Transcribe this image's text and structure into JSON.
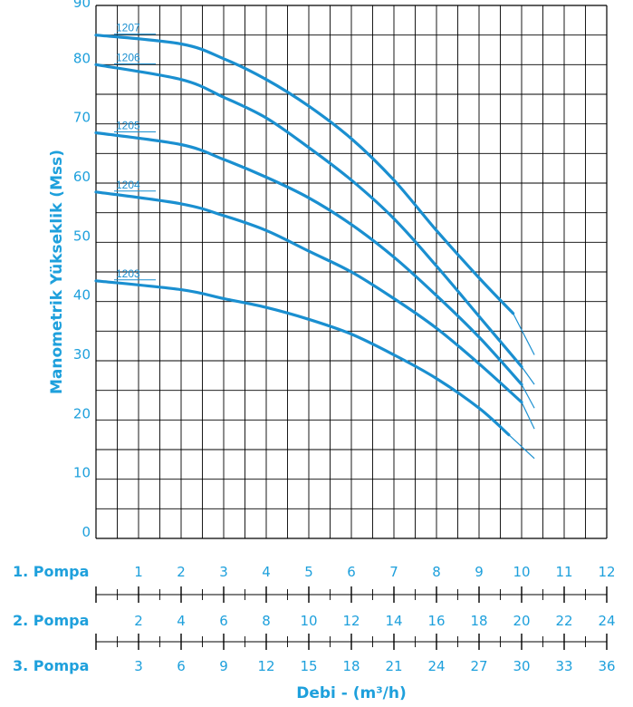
{
  "chart_data": {
    "type": "line",
    "title": "",
    "ylabel": "Manometrik Yükseklik (Mss)",
    "xlabel": "Debi - (m³/h)",
    "ylim": [
      0,
      90
    ],
    "yticks": [
      0,
      10,
      20,
      30,
      40,
      50,
      60,
      70,
      80,
      90
    ],
    "xlim_pump1": [
      0,
      12
    ],
    "x_unit_axis": "1. Pompa",
    "grid": true,
    "line_color": "#1a8fd0",
    "series": [
      {
        "name": "1207",
        "x": [
          0,
          2,
          3,
          4,
          5,
          6,
          7,
          8,
          9,
          9.8
        ],
        "y": [
          85,
          83.5,
          81,
          77.5,
          73,
          67.5,
          60.5,
          52,
          44,
          38
        ]
      },
      {
        "name": "1206",
        "x": [
          0,
          2,
          3,
          4,
          5,
          6,
          7,
          8,
          9,
          10
        ],
        "y": [
          80,
          77.5,
          74.5,
          71,
          66,
          60.5,
          54,
          46,
          37.5,
          29
        ]
      },
      {
        "name": "1205",
        "x": [
          0,
          2,
          3,
          4,
          5,
          6,
          7,
          8,
          9,
          10
        ],
        "y": [
          68.5,
          66.5,
          64,
          61,
          57.5,
          53,
          47.5,
          41,
          34,
          26
        ]
      },
      {
        "name": "1204",
        "x": [
          0,
          2,
          3,
          4,
          5,
          6,
          7,
          8,
          9,
          10
        ],
        "y": [
          58.5,
          56.5,
          54.5,
          52,
          48.5,
          45,
          40.5,
          35.5,
          29.5,
          23
        ]
      },
      {
        "name": "1203",
        "x": [
          0,
          2,
          3,
          4,
          5,
          6,
          7,
          8,
          9,
          9.7
        ],
        "y": [
          43.5,
          42,
          40.5,
          39,
          37,
          34.5,
          31,
          27,
          22,
          17.5
        ]
      }
    ],
    "extensions": [
      {
        "name": "1207",
        "x": [
          9.8,
          10.3
        ],
        "y": [
          38,
          31
        ]
      },
      {
        "name": "1206",
        "x": [
          10,
          10.3
        ],
        "y": [
          29,
          26
        ]
      },
      {
        "name": "1205",
        "x": [
          10,
          10.3
        ],
        "y": [
          26,
          22
        ]
      },
      {
        "name": "1204",
        "x": [
          10,
          10.3
        ],
        "y": [
          23,
          18.5
        ]
      },
      {
        "name": "1203",
        "x": [
          9.7,
          10.3
        ],
        "y": [
          17.5,
          13.5
        ]
      }
    ],
    "pump_rows": [
      {
        "label": "1. Pompa",
        "ticks": [
          "1",
          "2",
          "3",
          "4",
          "5",
          "6",
          "7",
          "8",
          "9",
          "10",
          "11",
          "12"
        ]
      },
      {
        "label": "2. Pompa",
        "ticks": [
          "2",
          "4",
          "6",
          "8",
          "10",
          "12",
          "14",
          "16",
          "18",
          "20",
          "22",
          "24"
        ]
      },
      {
        "label": "3. Pompa",
        "ticks": [
          "3",
          "6",
          "9",
          "12",
          "15",
          "18",
          "21",
          "24",
          "27",
          "30",
          "33",
          "36"
        ]
      }
    ]
  }
}
